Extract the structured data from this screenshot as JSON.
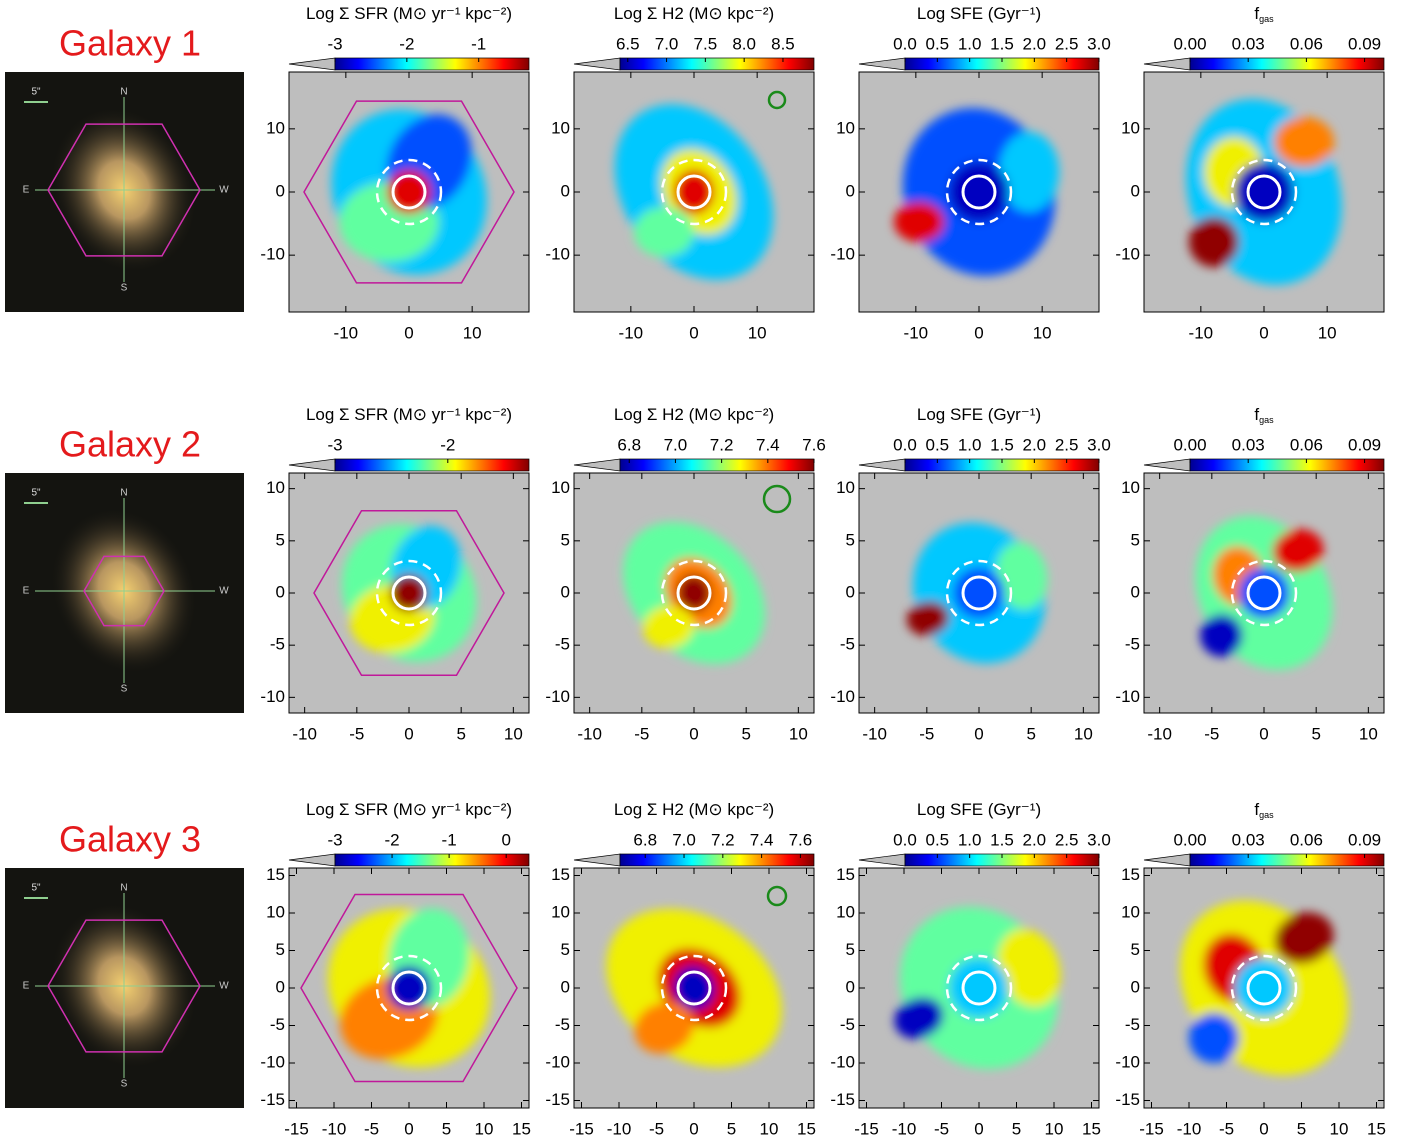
{
  "rows": [
    {
      "label": "Galaxy 1",
      "scale_bar": "5\"",
      "compass": [
        "N",
        "E",
        "W",
        "S"
      ],
      "chart_data": [
        {
          "type": "heatmap",
          "title": "Log Σ SFR (M⊙ yr⁻¹ kpc⁻²)",
          "colorbar": {
            "lim": [
              -3,
              -0.3
            ],
            "ticks": [
              -3,
              -2,
              -1
            ]
          },
          "xlim": [
            -19,
            19
          ],
          "ylim": [
            -19,
            19
          ],
          "xticks": [
            -10,
            0,
            10
          ],
          "yticks": [
            -10,
            0,
            10
          ]
        },
        {
          "type": "heatmap",
          "title": "Log Σ H2 (M⊙ kpc⁻²)",
          "colorbar": {
            "lim": [
              6.4,
              8.9
            ],
            "ticks": [
              6.5,
              {
                "value": 7,
                "label": "7.0"
              },
              7.5,
              {
                "value": 8,
                "label": "8.0"
              },
              8.5
            ]
          },
          "xlim": [
            -19,
            19
          ],
          "ylim": [
            -19,
            19
          ],
          "xticks": [
            -10,
            0,
            10
          ],
          "yticks": [
            -10,
            0,
            10
          ]
        },
        {
          "type": "heatmap",
          "title": "Log SFE (Gyr⁻¹)",
          "colorbar": {
            "lim": [
              0,
              3
            ],
            "ticks": [
              {
                "value": 0,
                "label": "0.0"
              },
              0.5,
              {
                "value": 1,
                "label": "1.0"
              },
              1.5,
              {
                "value": 2,
                "label": "2.0"
              },
              2.5,
              {
                "value": 3,
                "label": "3.0"
              }
            ]
          },
          "xlim": [
            -19,
            19
          ],
          "ylim": [
            -19,
            19
          ],
          "xticks": [
            -10,
            0,
            10
          ],
          "yticks": [
            -10,
            0,
            10
          ]
        },
        {
          "type": "heatmap",
          "title": "f",
          "title_sub": "gas",
          "colorbar": {
            "lim": [
              0,
              0.1
            ],
            "ticks": [
              {
                "value": 0,
                "label": "0.00"
              },
              {
                "value": 0.03,
                "label": "0.03"
              },
              {
                "value": 0.06,
                "label": "0.06"
              },
              {
                "value": 0.09,
                "label": "0.09"
              }
            ]
          },
          "xlim": [
            -19,
            19
          ],
          "ylim": [
            -19,
            19
          ],
          "xticks": [
            -10,
            0,
            10
          ],
          "yticks": [
            -10,
            0,
            10
          ]
        }
      ]
    },
    {
      "label": "Galaxy 2",
      "scale_bar": "5\"",
      "compass": [
        "N",
        "E",
        "W",
        "S"
      ],
      "chart_data": [
        {
          "type": "heatmap",
          "title": "Log Σ SFR (M⊙ yr⁻¹ kpc⁻²)",
          "colorbar": {
            "lim": [
              -3,
              -1.28
            ],
            "ticks": [
              -3,
              -2
            ]
          },
          "xlim": [
            -11.5,
            11.5
          ],
          "ylim": [
            -11.5,
            11.5
          ],
          "xticks": [
            -10,
            -5,
            0,
            5,
            10
          ],
          "yticks": [
            -10,
            -5,
            0,
            5,
            10
          ]
        },
        {
          "type": "heatmap",
          "title": "Log Σ H2 (M⊙ kpc⁻²)",
          "colorbar": {
            "lim": [
              6.76,
              7.6
            ],
            "ticks": [
              6.8,
              {
                "value": 7,
                "label": "7.0"
              },
              7.2,
              7.4,
              7.6
            ]
          },
          "xlim": [
            -11.5,
            11.5
          ],
          "ylim": [
            -11.5,
            11.5
          ],
          "xticks": [
            -10,
            -5,
            0,
            5,
            10
          ],
          "yticks": [
            -10,
            -5,
            0,
            5,
            10
          ]
        },
        {
          "type": "heatmap",
          "title": "Log SFE (Gyr⁻¹)",
          "colorbar": {
            "lim": [
              0,
              3
            ],
            "ticks": [
              {
                "value": 0,
                "label": "0.0"
              },
              0.5,
              {
                "value": 1,
                "label": "1.0"
              },
              1.5,
              {
                "value": 2,
                "label": "2.0"
              },
              2.5,
              {
                "value": 3,
                "label": "3.0"
              }
            ]
          },
          "xlim": [
            -11.5,
            11.5
          ],
          "ylim": [
            -11.5,
            11.5
          ],
          "xticks": [
            -10,
            -5,
            0,
            5,
            10
          ],
          "yticks": [
            -10,
            -5,
            0,
            5,
            10
          ]
        },
        {
          "type": "heatmap",
          "title": "f",
          "title_sub": "gas",
          "colorbar": {
            "lim": [
              0,
              0.1
            ],
            "ticks": [
              {
                "value": 0,
                "label": "0.00"
              },
              {
                "value": 0.03,
                "label": "0.03"
              },
              {
                "value": 0.06,
                "label": "0.06"
              },
              {
                "value": 0.09,
                "label": "0.09"
              }
            ]
          },
          "xlim": [
            -11.5,
            11.5
          ],
          "ylim": [
            -11.5,
            11.5
          ],
          "xticks": [
            -10,
            -5,
            0,
            5,
            10
          ],
          "yticks": [
            -10,
            -5,
            0,
            5,
            10
          ]
        }
      ]
    },
    {
      "label": "Galaxy 3",
      "scale_bar": "5\"",
      "compass": [
        "N",
        "E",
        "W",
        "S"
      ],
      "chart_data": [
        {
          "type": "heatmap",
          "title": "Log Σ SFR (M⊙ yr⁻¹ kpc⁻²)",
          "colorbar": {
            "lim": [
              -3,
              0.4
            ],
            "ticks": [
              -3,
              -2,
              -1,
              0
            ]
          },
          "xlim": [
            -16,
            16
          ],
          "ylim": [
            -16,
            16
          ],
          "xticks": [
            -15,
            -10,
            -5,
            0,
            5,
            10,
            15
          ],
          "yticks": [
            -15,
            -10,
            -5,
            0,
            5,
            10,
            15
          ]
        },
        {
          "type": "heatmap",
          "title": "Log Σ H2 (M⊙ kpc⁻²)",
          "colorbar": {
            "lim": [
              6.67,
              7.67
            ],
            "ticks": [
              6.8,
              {
                "value": 7,
                "label": "7.0"
              },
              7.2,
              7.4,
              7.6
            ]
          },
          "xlim": [
            -16,
            16
          ],
          "ylim": [
            -16,
            16
          ],
          "xticks": [
            -15,
            -10,
            -5,
            0,
            5,
            10,
            15
          ],
          "yticks": [
            -15,
            -10,
            -5,
            0,
            5,
            10,
            15
          ]
        },
        {
          "type": "heatmap",
          "title": "Log SFE (Gyr⁻¹)",
          "colorbar": {
            "lim": [
              0,
              3
            ],
            "ticks": [
              {
                "value": 0,
                "label": "0.0"
              },
              0.5,
              {
                "value": 1,
                "label": "1.0"
              },
              1.5,
              {
                "value": 2,
                "label": "2.0"
              },
              2.5,
              {
                "value": 3,
                "label": "3.0"
              }
            ]
          },
          "xlim": [
            -16,
            16
          ],
          "ylim": [
            -16,
            16
          ],
          "xticks": [
            -15,
            -10,
            -5,
            0,
            5,
            10,
            15
          ],
          "yticks": [
            -15,
            -10,
            -5,
            0,
            5,
            10,
            15
          ]
        },
        {
          "type": "heatmap",
          "title": "f",
          "title_sub": "gas",
          "colorbar": {
            "lim": [
              0,
              0.1
            ],
            "ticks": [
              {
                "value": 0,
                "label": "0.00"
              },
              {
                "value": 0.03,
                "label": "0.03"
              },
              {
                "value": 0.06,
                "label": "0.06"
              },
              {
                "value": 0.09,
                "label": "0.09"
              }
            ]
          },
          "xlim": [
            -16,
            16
          ],
          "ylim": [
            -16,
            16
          ],
          "xticks": [
            -15,
            -10,
            -5,
            0,
            5,
            10,
            15
          ],
          "yticks": [
            -15,
            -10,
            -5,
            0,
            5,
            10,
            15
          ]
        }
      ]
    }
  ]
}
